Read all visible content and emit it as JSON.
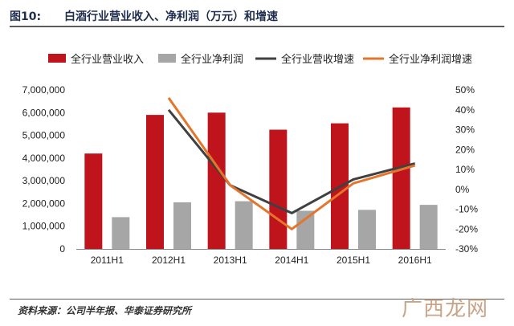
{
  "header": {
    "figure_label": "图10:",
    "title": "白酒行业营业收入、净利润（万元）和增速"
  },
  "source": "资料来源：公司半年报、华泰证券研究所",
  "watermark": "广西龙网",
  "colors": {
    "revenue_bar": "#c0141c",
    "profit_bar": "#a6a6a6",
    "revenue_growth": "#404040",
    "profit_growth": "#e3762b",
    "title_text": "#1f2d4e"
  },
  "chart_data": {
    "type": "bar",
    "categories": [
      "2011H1",
      "2012H1",
      "2013H1",
      "2014H1",
      "2015H1",
      "2016H1"
    ],
    "series": [
      {
        "name": "全行业营业收入",
        "type": "bar",
        "axis": "left",
        "values": [
          4200000,
          5900000,
          6000000,
          5250000,
          5530000,
          6230000
        ]
      },
      {
        "name": "全行业净利润",
        "type": "bar",
        "axis": "left",
        "values": [
          1400000,
          2050000,
          2100000,
          1680000,
          1720000,
          1940000
        ]
      },
      {
        "name": "全行业营收增速",
        "type": "line",
        "axis": "right",
        "values": [
          null,
          40,
          2,
          -12,
          5,
          13
        ]
      },
      {
        "name": "全行业净利润增速",
        "type": "line",
        "axis": "right",
        "values": [
          null,
          46,
          2,
          -20,
          3,
          12
        ]
      }
    ],
    "y_left": {
      "range": [
        0,
        7000000
      ],
      "ticks": [
        "0",
        "1,000,000",
        "2,000,000",
        "3,000,000",
        "4,000,000",
        "5,000,000",
        "6,000,000",
        "7,000,000"
      ]
    },
    "y_right": {
      "range": [
        -30,
        50
      ],
      "ticks": [
        "-30%",
        "-20%",
        "-10%",
        "0%",
        "10%",
        "20%",
        "30%",
        "40%",
        "50%"
      ]
    },
    "legend_position": "top",
    "grid": false
  }
}
